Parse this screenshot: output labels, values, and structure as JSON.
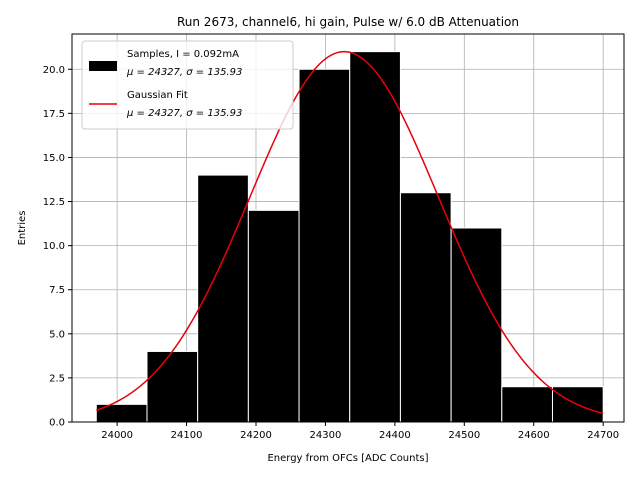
{
  "chart_data": {
    "type": "bar",
    "title": "Run 2673, channel6, hi gain, Pulse w/ 6.0 dB Attenuation",
    "xlabel": "Energy from OFCs [ADC Counts]",
    "ylabel": "Entries",
    "xlim": [
      23935,
      24730
    ],
    "ylim": [
      0,
      22
    ],
    "grid": true,
    "legend_position": "top-left",
    "x_ticks": [
      24000,
      24100,
      24200,
      24300,
      24400,
      24500,
      24600,
      24700
    ],
    "y_ticks": [
      0.0,
      2.5,
      5.0,
      7.5,
      10.0,
      12.5,
      15.0,
      17.5,
      20.0
    ],
    "y_tick_labels": [
      "0.0",
      "2.5",
      "5.0",
      "7.5",
      "10.0",
      "12.5",
      "15.0",
      "17.5",
      "20.0"
    ],
    "histogram": {
      "name": "Samples, I = 0.092mA",
      "name_line2": "μ = 24327, σ = 135.93",
      "color": "#000000",
      "edge_color": "#ffffff",
      "bin_edges": [
        23970,
        24043,
        24116,
        24189,
        24262,
        24335,
        24408,
        24481,
        24554,
        24627,
        24700
      ],
      "counts": [
        1,
        4,
        14,
        12,
        20,
        21,
        13,
        11,
        2,
        2
      ]
    },
    "fit": {
      "name": "Gaussian Fit",
      "name_line2": "μ = 24327, σ = 135.93",
      "color": "#e8000b",
      "mu": 24327,
      "sigma": 135.93,
      "amplitude": 21,
      "x_range": [
        23970,
        24700
      ]
    }
  }
}
